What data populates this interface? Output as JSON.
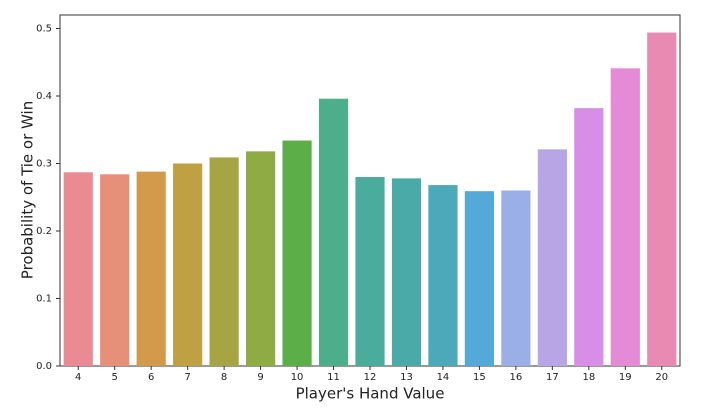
{
  "chart_data": {
    "type": "bar",
    "x_label": "Player's Hand Value",
    "y_label": "Probability of Tie or Win",
    "categories": [
      "4",
      "5",
      "6",
      "7",
      "8",
      "9",
      "10",
      "11",
      "12",
      "13",
      "14",
      "15",
      "16",
      "17",
      "18",
      "19",
      "20"
    ],
    "values": [
      0.287,
      0.284,
      0.288,
      0.3,
      0.309,
      0.318,
      0.334,
      0.396,
      0.28,
      0.278,
      0.268,
      0.259,
      0.26,
      0.321,
      0.382,
      0.441,
      0.494
    ],
    "colors": [
      "#ea8a92",
      "#e6907a",
      "#d29a4a",
      "#bfa043",
      "#a7a444",
      "#8fac44",
      "#5caf48",
      "#4cae8a",
      "#4aac9d",
      "#4aaaa8",
      "#4ba9ba",
      "#53a9d8",
      "#9aaee8",
      "#b7a5e6",
      "#d78ee6",
      "#e58ad6",
      "#e98ab3"
    ],
    "ylim": [
      0,
      0.52
    ],
    "yticks": [
      {
        "value": 0,
        "label": "0.0"
      },
      0.1,
      0.2,
      0.3,
      0.4,
      0.5
    ]
  }
}
